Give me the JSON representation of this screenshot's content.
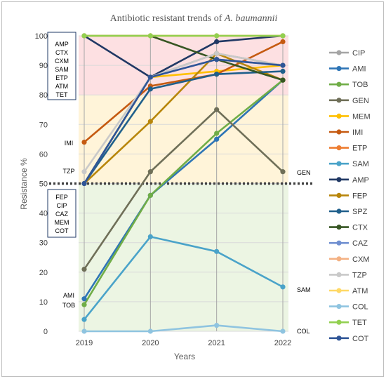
{
  "chart_data": {
    "type": "line",
    "title_prefix": "Antibiotic resistant trends of ",
    "title_organism": "A. baumannii",
    "xlabel": "Years",
    "ylabel": "Resistance %",
    "x": [
      "2019",
      "2020",
      "2021",
      "2022"
    ],
    "ylim": [
      0,
      100
    ],
    "yticks": [
      0,
      10,
      20,
      30,
      40,
      50,
      60,
      70,
      80,
      90,
      100
    ],
    "threshold": 50,
    "bands": [
      {
        "from": 80,
        "to": 100,
        "color": "#fde0e2"
      },
      {
        "from": 50,
        "to": 80,
        "color": "#fff4d9"
      },
      {
        "from": 0,
        "to": 50,
        "color": "#ecf5e3"
      }
    ],
    "legend_position": "right",
    "series": [
      {
        "name": "CIP",
        "color": "#a5a5a5",
        "values": [
          50,
          86,
          94,
          90
        ]
      },
      {
        "name": "AMI",
        "color": "#2e75b6",
        "values": [
          11,
          46,
          65,
          85
        ]
      },
      {
        "name": "TOB",
        "color": "#70ad47",
        "values": [
          9,
          46,
          67,
          85
        ]
      },
      {
        "name": "GEN",
        "color": "#6f6f58",
        "values": [
          21,
          54,
          75,
          54
        ]
      },
      {
        "name": "MEM",
        "color": "#ffc000",
        "values": [
          50,
          86,
          88,
          90
        ]
      },
      {
        "name": "IMI",
        "color": "#c55a11",
        "values": [
          64,
          83,
          87,
          98
        ]
      },
      {
        "name": "ETP",
        "color": "#ed7d31",
        "values": [
          100,
          100,
          100,
          100
        ]
      },
      {
        "name": "SAM",
        "color": "#4aa3c9",
        "values": [
          4,
          32,
          27,
          15
        ]
      },
      {
        "name": "AMP",
        "color": "#203864",
        "values": [
          100,
          86,
          98,
          100
        ]
      },
      {
        "name": "FEP",
        "color": "#b8860b",
        "values": [
          50,
          71,
          94,
          85
        ]
      },
      {
        "name": "SPZ",
        "color": "#1f5f8b",
        "values": [
          50,
          82,
          87,
          88
        ]
      },
      {
        "name": "CTX",
        "color": "#375623",
        "values": [
          100,
          100,
          92,
          85
        ]
      },
      {
        "name": "CAZ",
        "color": "#6f8fd0",
        "values": [
          50,
          86,
          92,
          90
        ]
      },
      {
        "name": "CXM",
        "color": "#f4b183",
        "values": [
          100,
          100,
          100,
          100
        ]
      },
      {
        "name": "TZP",
        "color": "#c9c9c9",
        "values": [
          54,
          86,
          94,
          90
        ]
      },
      {
        "name": "ATM",
        "color": "#ffd966",
        "values": [
          100,
          100,
          100,
          100
        ]
      },
      {
        "name": "COL",
        "color": "#8fc4e0",
        "values": [
          0,
          0,
          2,
          0
        ]
      },
      {
        "name": "TET",
        "color": "#92d050",
        "values": [
          100,
          100,
          100,
          100
        ]
      },
      {
        "name": "COT",
        "color": "#2f5597",
        "values": [
          50,
          86,
          92,
          90
        ]
      }
    ],
    "annotations": {
      "box_top": [
        "AMP",
        "CTX",
        "CXM",
        "SAM",
        "ETP",
        "ATM",
        "TET"
      ],
      "box_mid": [
        "FEP",
        "CIP",
        "CAZ",
        "MEM",
        "COT"
      ],
      "imi": "IMI",
      "tzp": "TZP",
      "ami": "AMI",
      "tob": "TOB",
      "gen": "GEN",
      "sam": "SAM",
      "col": "COL"
    }
  }
}
